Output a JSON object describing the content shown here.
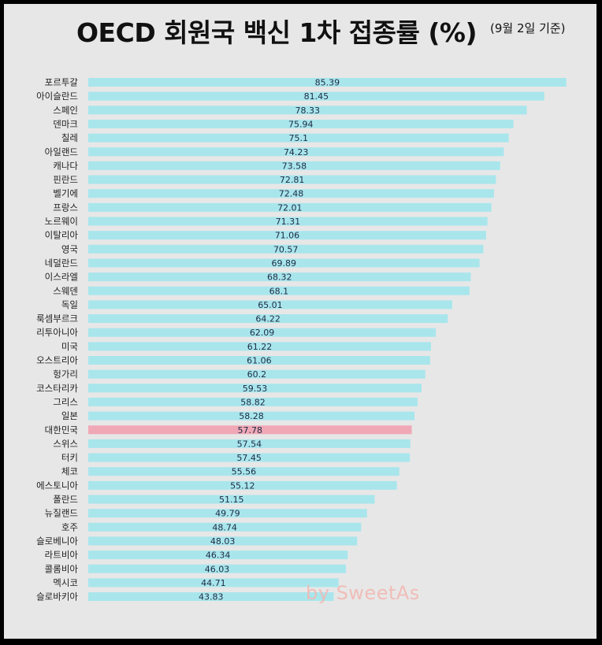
{
  "title": "OECD 회원국 백신 1차 접종률 (%)",
  "subtitle": "(9월 2일 기준)",
  "watermark": "by SweetAs",
  "colors": {
    "bar": "#a8e6ec",
    "highlight_bar": "#f0a8b6",
    "background": "#e7e7e7",
    "frame": "#000000"
  },
  "chart_data": {
    "type": "bar",
    "orientation": "horizontal",
    "highlight": "대한민국",
    "grid": false,
    "legend": "none",
    "categories": [
      "포르투갈",
      "아이슬란드",
      "스페인",
      "덴마크",
      "칠레",
      "아일랜드",
      "캐나다",
      "핀란드",
      "벨기에",
      "프랑스",
      "노르웨이",
      "이탈리아",
      "영국",
      "네덜란드",
      "이스라엘",
      "스웨덴",
      "독일",
      "룩셈부르크",
      "리투아니아",
      "미국",
      "오스트리아",
      "헝가리",
      "코스타리카",
      "그리스",
      "일본",
      "대한민국",
      "스위스",
      "터키",
      "체코",
      "에스토니아",
      "폴란드",
      "뉴질랜드",
      "호주",
      "슬로베니아",
      "라트비아",
      "콜롬비아",
      "멕시코",
      "슬로바키아"
    ],
    "values": [
      85.39,
      81.45,
      78.33,
      75.94,
      75.1,
      74.23,
      73.58,
      72.81,
      72.48,
      72.01,
      71.31,
      71.06,
      70.57,
      69.89,
      68.32,
      68.1,
      65.01,
      64.22,
      62.09,
      61.22,
      61.06,
      60.2,
      59.53,
      58.82,
      58.28,
      57.78,
      57.54,
      57.45,
      55.56,
      55.12,
      51.15,
      49.79,
      48.74,
      48.03,
      46.34,
      46.03,
      44.71,
      43.83
    ],
    "value_labels": [
      "85.39",
      "81.45",
      "78.33",
      "75.94",
      "75.1",
      "74.23",
      "73.58",
      "72.81",
      "72.48",
      "72.01",
      "71.31",
      "71.06",
      "70.57",
      "69.89",
      "68.32",
      "68.1",
      "65.01",
      "64.22",
      "62.09",
      "61.22",
      "61.06",
      "60.2",
      "59.53",
      "58.82",
      "58.28",
      "57.78",
      "57.54",
      "57.45",
      "55.56",
      "55.12",
      "51.15",
      "49.79",
      "48.74",
      "48.03",
      "46.34",
      "46.03",
      "44.71",
      "43.83"
    ]
  }
}
